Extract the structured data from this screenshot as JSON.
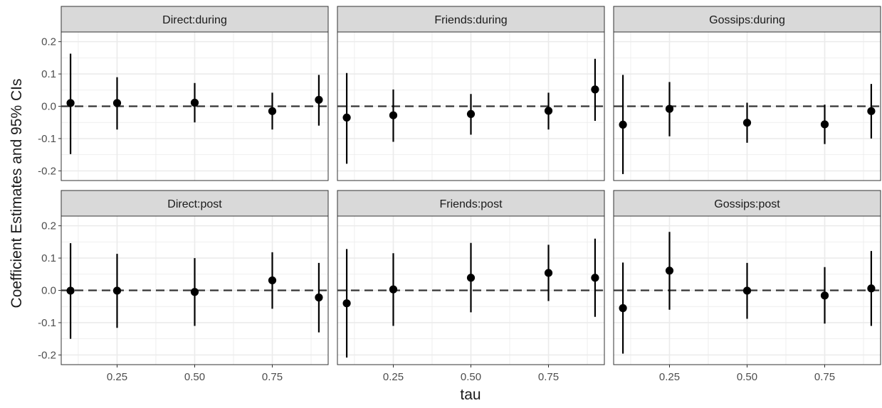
{
  "chart_data": {
    "type": "scatter",
    "subtype": "point-range facet grid",
    "xlabel": "tau",
    "ylabel": "Coefficient Estimates and 95% CIs",
    "x_ticks": [
      "0.25",
      "0.50",
      "0.75"
    ],
    "y_ticks": [
      "0.2",
      "0.1",
      "0.0",
      "-0.1",
      "-0.2"
    ],
    "xlim": [
      0.07,
      0.93
    ],
    "ylim": [
      -0.23,
      0.23
    ],
    "reference_line": {
      "y": 0,
      "style": "dashed"
    },
    "grid": true,
    "colors": {
      "panel_strip": "#d9d9d9",
      "grid": "#ebebeb",
      "points": "#000000",
      "border": "#333333"
    },
    "panels": [
      {
        "title": "Direct:during",
        "points": [
          {
            "x": 0.1,
            "y": 0.01,
            "lo": -0.148,
            "hi": 0.163
          },
          {
            "x": 0.25,
            "y": 0.01,
            "lo": -0.072,
            "hi": 0.09
          },
          {
            "x": 0.5,
            "y": 0.011,
            "lo": -0.05,
            "hi": 0.072
          },
          {
            "x": 0.75,
            "y": -0.015,
            "lo": -0.072,
            "hi": 0.042
          },
          {
            "x": 0.9,
            "y": 0.02,
            "lo": -0.06,
            "hi": 0.097
          }
        ]
      },
      {
        "title": "Friends:during",
        "points": [
          {
            "x": 0.1,
            "y": -0.035,
            "lo": -0.178,
            "hi": 0.103
          },
          {
            "x": 0.25,
            "y": -0.028,
            "lo": -0.11,
            "hi": 0.052
          },
          {
            "x": 0.5,
            "y": -0.024,
            "lo": -0.088,
            "hi": 0.038
          },
          {
            "x": 0.75,
            "y": -0.014,
            "lo": -0.072,
            "hi": 0.042
          },
          {
            "x": 0.9,
            "y": 0.052,
            "lo": -0.045,
            "hi": 0.147
          }
        ]
      },
      {
        "title": "Gossips:during",
        "points": [
          {
            "x": 0.1,
            "y": -0.057,
            "lo": -0.21,
            "hi": 0.097
          },
          {
            "x": 0.25,
            "y": -0.008,
            "lo": -0.093,
            "hi": 0.075
          },
          {
            "x": 0.5,
            "y": -0.051,
            "lo": -0.113,
            "hi": 0.011
          },
          {
            "x": 0.75,
            "y": -0.056,
            "lo": -0.117,
            "hi": 0.005
          },
          {
            "x": 0.9,
            "y": -0.015,
            "lo": -0.1,
            "hi": 0.069
          }
        ]
      },
      {
        "title": "Direct:post",
        "points": [
          {
            "x": 0.1,
            "y": -0.001,
            "lo": -0.15,
            "hi": 0.146
          },
          {
            "x": 0.25,
            "y": -0.001,
            "lo": -0.116,
            "hi": 0.113
          },
          {
            "x": 0.5,
            "y": -0.005,
            "lo": -0.11,
            "hi": 0.1
          },
          {
            "x": 0.75,
            "y": 0.031,
            "lo": -0.057,
            "hi": 0.118
          },
          {
            "x": 0.9,
            "y": -0.022,
            "lo": -0.13,
            "hi": 0.085
          }
        ]
      },
      {
        "title": "Friends:post",
        "points": [
          {
            "x": 0.1,
            "y": -0.04,
            "lo": -0.208,
            "hi": 0.128
          },
          {
            "x": 0.25,
            "y": 0.003,
            "lo": -0.11,
            "hi": 0.115
          },
          {
            "x": 0.5,
            "y": 0.039,
            "lo": -0.068,
            "hi": 0.147
          },
          {
            "x": 0.75,
            "y": 0.054,
            "lo": -0.033,
            "hi": 0.141
          },
          {
            "x": 0.9,
            "y": 0.039,
            "lo": -0.082,
            "hi": 0.16
          }
        ]
      },
      {
        "title": "Gossips:post",
        "points": [
          {
            "x": 0.1,
            "y": -0.055,
            "lo": -0.196,
            "hi": 0.086
          },
          {
            "x": 0.25,
            "y": 0.061,
            "lo": -0.06,
            "hi": 0.181
          },
          {
            "x": 0.5,
            "y": -0.001,
            "lo": -0.088,
            "hi": 0.085
          },
          {
            "x": 0.75,
            "y": -0.016,
            "lo": -0.103,
            "hi": 0.072
          },
          {
            "x": 0.9,
            "y": 0.006,
            "lo": -0.11,
            "hi": 0.122
          }
        ]
      }
    ]
  }
}
